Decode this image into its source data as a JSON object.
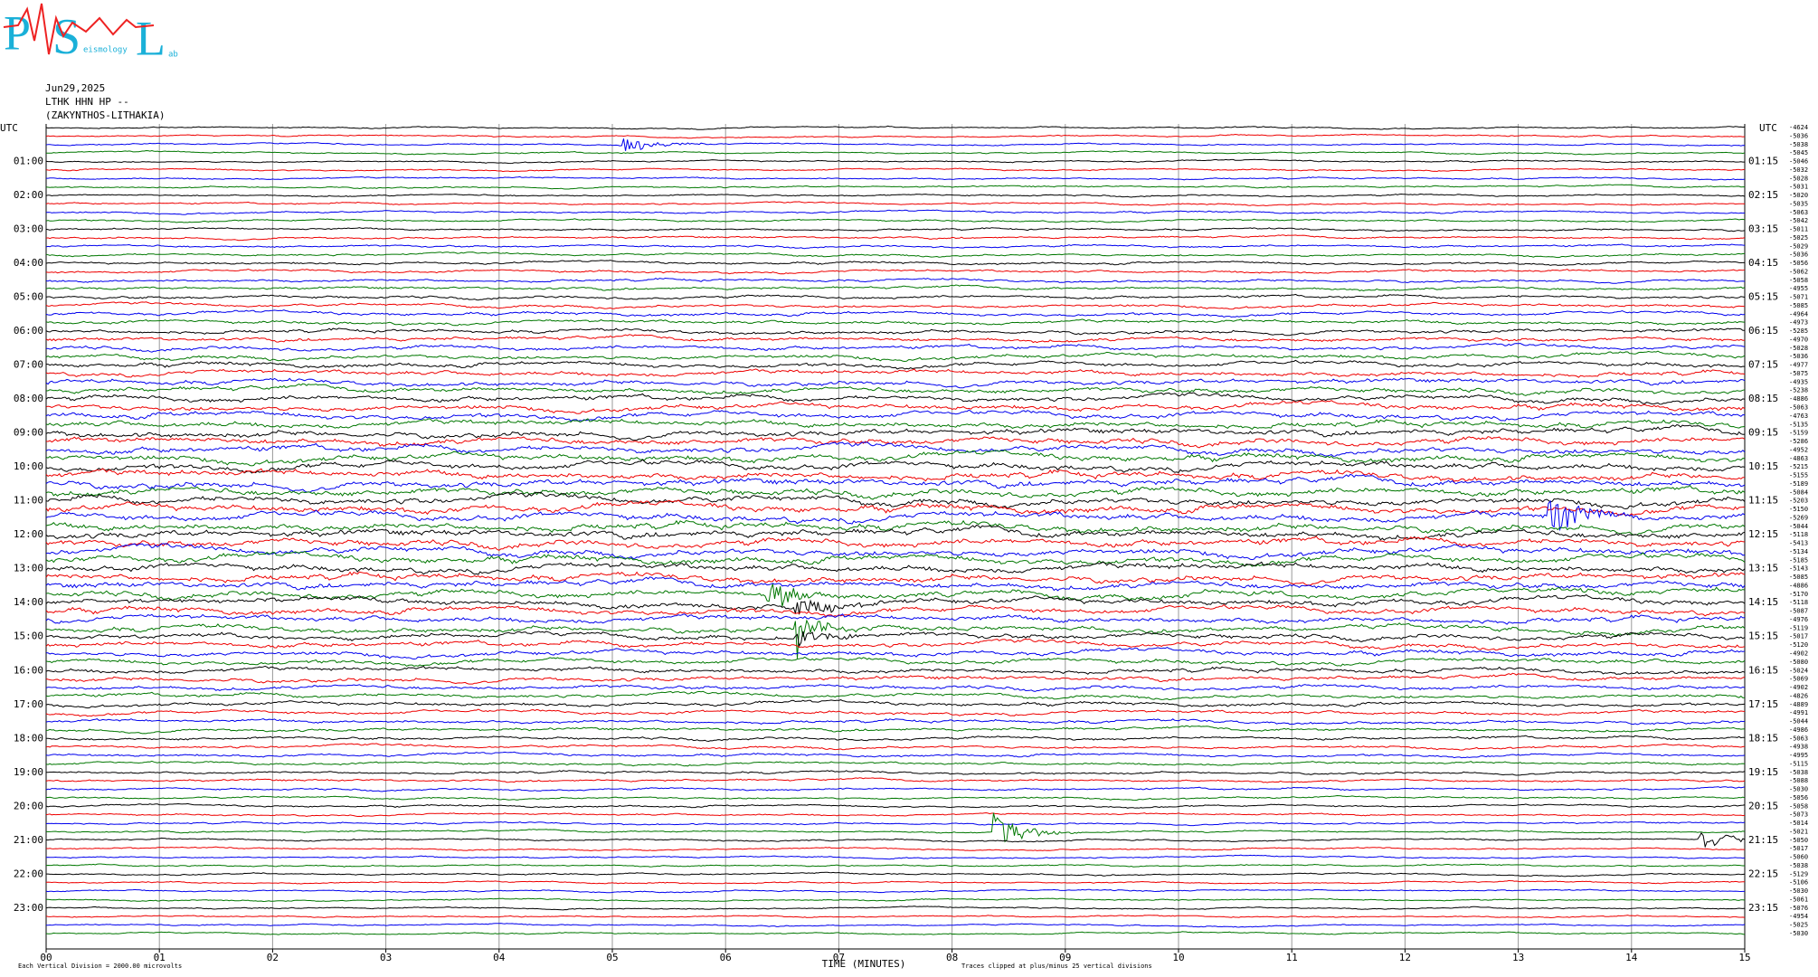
{
  "logo": {
    "letters": [
      "P",
      "S",
      "L"
    ],
    "small": [
      "eismology",
      "ab"
    ]
  },
  "header": [
    "Jun29,2025",
    "LTHK HHN HP --",
    "(ZAKYNTHOS-LITHAKIA)"
  ],
  "left_axis": {
    "title": "UTC",
    "labels": [
      "01:00",
      "02:00",
      "03:00",
      "04:00",
      "05:00",
      "06:00",
      "07:00",
      "08:00",
      "09:00",
      "10:00",
      "11:00",
      "12:00",
      "13:00",
      "14:00",
      "15:00",
      "16:00",
      "17:00",
      "18:00",
      "19:00",
      "20:00",
      "21:00",
      "22:00",
      "23:00"
    ]
  },
  "right_axis": {
    "title": "UTC",
    "labels": [
      "01:15",
      "02:15",
      "03:15",
      "04:15",
      "05:15",
      "06:15",
      "07:15",
      "08:15",
      "09:15",
      "10:15",
      "11:15",
      "12:15",
      "13:15",
      "14:15",
      "15:15",
      "16:15",
      "17:15",
      "18:15",
      "19:15",
      "20:15",
      "21:15",
      "22:15",
      "23:15"
    ]
  },
  "trace_offsets": [
    -4624,
    -5036,
    -5038,
    -5045,
    -5046,
    -5032,
    -5028,
    -5031,
    -5020,
    -5035,
    -5063,
    -5042,
    -5011,
    -5025,
    -5029,
    -5036,
    -5056,
    -5062,
    -5058,
    -4955,
    -5071,
    -5085,
    -4964,
    -4973,
    -5285,
    -4970,
    -5028,
    -5036,
    -4977,
    -5075,
    -4935,
    -5238,
    -4886,
    -5063,
    -4763,
    -5135,
    -5159,
    -5286,
    -4952,
    -4863,
    -5215,
    -5155,
    -5189,
    -5084,
    -5203,
    -5150,
    -5269,
    -5044,
    -5118,
    -5413,
    -5134,
    -5185,
    -5143,
    -5085,
    -4886,
    -5170,
    -5118,
    -5087,
    -4976,
    -5119,
    -5017,
    -5120,
    -4902,
    -5080,
    -5024,
    -5069,
    -4902,
    -4826,
    -4889,
    -4991,
    -5044,
    -4986,
    -5063,
    -4938,
    -4995,
    -5115,
    -5038,
    -5088,
    -5030,
    -5056,
    -5058,
    -5073,
    -5014,
    -5021,
    -5050,
    -5017,
    -5060,
    -5038,
    -5129,
    -5106,
    -5030,
    -5061,
    -5076,
    -4954,
    -5025,
    -5030
  ],
  "x_axis": {
    "title": "TIME (MINUTES)",
    "labels": [
      "00",
      "01",
      "02",
      "03",
      "04",
      "05",
      "06",
      "07",
      "08",
      "09",
      "10",
      "11",
      "12",
      "13",
      "14",
      "15"
    ]
  },
  "footer": {
    "scale": "Each Vertical Division = 2000.00 microvolts",
    "clip": "Traces clipped at plus/minus 25 vertical divisions"
  }
}
